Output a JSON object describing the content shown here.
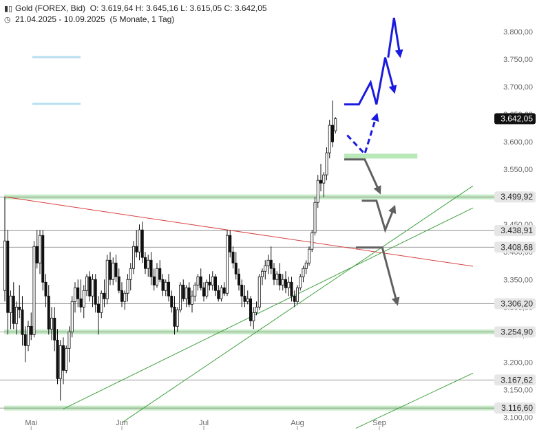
{
  "header": {
    "instrument": "Gold (FOREX, Bid)",
    "ohlc": "O: 3.619,64  H: 3.645,16  L: 3.615,05  C: 3.642,05",
    "range": "21.04.2025 - 10.09.2025",
    "period": "(5 Monate, 1 Tag)",
    "instrument_icon": "candlestick-icon",
    "range_icon": "clock-icon"
  },
  "chart_data": {
    "type": "candlestick",
    "x_labels": [
      "Mai",
      "Jun",
      "Jul",
      "Aug",
      "Sep"
    ],
    "y_ticks": [
      3100,
      3150,
      3200,
      3250,
      3300,
      3350,
      3400,
      3450,
      3500,
      3550,
      3600,
      3650,
      3700,
      3750,
      3800
    ],
    "y_tick_labels": [
      "3.100,00",
      "3.150,00",
      "3.200,00",
      "3.250,00",
      "3.300,00",
      "3.350,00",
      "3.400,00",
      "3.450,00",
      "3.500,00",
      "3.550,00",
      "3.600,00",
      "3.650,00",
      "3.700,00",
      "3.750,00",
      "3.800,00"
    ],
    "ylim": [
      3098,
      3835
    ],
    "grid": false,
    "current_price": {
      "value": 3642.05,
      "label": "3.642,05"
    },
    "levels": [
      {
        "label": "3.499,92",
        "value": 3499.92,
        "zone": true
      },
      {
        "label": "3.438,91",
        "value": 3438.91,
        "zone": false
      },
      {
        "label": "3.408,68",
        "value": 3408.68,
        "zone": false
      },
      {
        "label": "3.306,20",
        "value": 3306.2,
        "zone": false
      },
      {
        "label": "3.254,90",
        "value": 3254.9,
        "zone": true
      },
      {
        "label": "3.167,62",
        "value": 3167.62,
        "zone": false
      },
      {
        "label": "3.116,60",
        "value": 3116.6,
        "zone": true
      }
    ],
    "candles": [
      {
        "o": 3330,
        "h": 3500,
        "l": 3310,
        "c": 3420
      },
      {
        "o": 3420,
        "h": 3440,
        "l": 3250,
        "c": 3290
      },
      {
        "o": 3290,
        "h": 3330,
        "l": 3260,
        "c": 3320
      },
      {
        "o": 3320,
        "h": 3345,
        "l": 3260,
        "c": 3270
      },
      {
        "o": 3270,
        "h": 3310,
        "l": 3250,
        "c": 3300
      },
      {
        "o": 3300,
        "h": 3340,
        "l": 3280,
        "c": 3295
      },
      {
        "o": 3295,
        "h": 3320,
        "l": 3230,
        "c": 3250
      },
      {
        "o": 3250,
        "h": 3265,
        "l": 3200,
        "c": 3230
      },
      {
        "o": 3230,
        "h": 3275,
        "l": 3220,
        "c": 3265
      },
      {
        "o": 3265,
        "h": 3290,
        "l": 3240,
        "c": 3250
      },
      {
        "o": 3250,
        "h": 3420,
        "l": 3245,
        "c": 3410
      },
      {
        "o": 3410,
        "h": 3440,
        "l": 3370,
        "c": 3380
      },
      {
        "o": 3380,
        "h": 3440,
        "l": 3360,
        "c": 3430
      },
      {
        "o": 3430,
        "h": 3440,
        "l": 3330,
        "c": 3345
      },
      {
        "o": 3345,
        "h": 3360,
        "l": 3300,
        "c": 3320
      },
      {
        "o": 3320,
        "h": 3340,
        "l": 3250,
        "c": 3260
      },
      {
        "o": 3260,
        "h": 3300,
        "l": 3240,
        "c": 3280
      },
      {
        "o": 3280,
        "h": 3300,
        "l": 3220,
        "c": 3240
      },
      {
        "o": 3240,
        "h": 3260,
        "l": 3160,
        "c": 3170
      },
      {
        "o": 3170,
        "h": 3240,
        "l": 3130,
        "c": 3230
      },
      {
        "o": 3230,
        "h": 3245,
        "l": 3160,
        "c": 3185
      },
      {
        "o": 3185,
        "h": 3230,
        "l": 3180,
        "c": 3225
      },
      {
        "o": 3225,
        "h": 3265,
        "l": 3200,
        "c": 3255
      },
      {
        "o": 3255,
        "h": 3320,
        "l": 3245,
        "c": 3310
      },
      {
        "o": 3310,
        "h": 3345,
        "l": 3290,
        "c": 3335
      },
      {
        "o": 3335,
        "h": 3350,
        "l": 3300,
        "c": 3315
      },
      {
        "o": 3315,
        "h": 3350,
        "l": 3290,
        "c": 3300
      },
      {
        "o": 3300,
        "h": 3340,
        "l": 3280,
        "c": 3330
      },
      {
        "o": 3330,
        "h": 3360,
        "l": 3320,
        "c": 3355
      },
      {
        "o": 3355,
        "h": 3365,
        "l": 3310,
        "c": 3320
      },
      {
        "o": 3320,
        "h": 3360,
        "l": 3300,
        "c": 3350
      },
      {
        "o": 3350,
        "h": 3360,
        "l": 3290,
        "c": 3305
      },
      {
        "o": 3305,
        "h": 3320,
        "l": 3250,
        "c": 3290
      },
      {
        "o": 3290,
        "h": 3330,
        "l": 3280,
        "c": 3325
      },
      {
        "o": 3325,
        "h": 3350,
        "l": 3300,
        "c": 3315
      },
      {
        "o": 3315,
        "h": 3395,
        "l": 3305,
        "c": 3385
      },
      {
        "o": 3385,
        "h": 3400,
        "l": 3340,
        "c": 3350
      },
      {
        "o": 3350,
        "h": 3390,
        "l": 3340,
        "c": 3380
      },
      {
        "o": 3380,
        "h": 3395,
        "l": 3345,
        "c": 3355
      },
      {
        "o": 3355,
        "h": 3370,
        "l": 3325,
        "c": 3330
      },
      {
        "o": 3330,
        "h": 3345,
        "l": 3300,
        "c": 3310
      },
      {
        "o": 3310,
        "h": 3330,
        "l": 3295,
        "c": 3325
      },
      {
        "o": 3325,
        "h": 3360,
        "l": 3310,
        "c": 3350
      },
      {
        "o": 3350,
        "h": 3380,
        "l": 3330,
        "c": 3370
      },
      {
        "o": 3370,
        "h": 3420,
        "l": 3360,
        "c": 3410
      },
      {
        "o": 3410,
        "h": 3440,
        "l": 3390,
        "c": 3400
      },
      {
        "o": 3400,
        "h": 3450,
        "l": 3385,
        "c": 3440
      },
      {
        "o": 3440,
        "h": 3455,
        "l": 3380,
        "c": 3390
      },
      {
        "o": 3390,
        "h": 3400,
        "l": 3360,
        "c": 3370
      },
      {
        "o": 3370,
        "h": 3395,
        "l": 3355,
        "c": 3385
      },
      {
        "o": 3385,
        "h": 3400,
        "l": 3340,
        "c": 3355
      },
      {
        "o": 3355,
        "h": 3370,
        "l": 3330,
        "c": 3340
      },
      {
        "o": 3340,
        "h": 3380,
        "l": 3335,
        "c": 3370
      },
      {
        "o": 3370,
        "h": 3385,
        "l": 3345,
        "c": 3350
      },
      {
        "o": 3350,
        "h": 3360,
        "l": 3320,
        "c": 3330
      },
      {
        "o": 3330,
        "h": 3350,
        "l": 3320,
        "c": 3345
      },
      {
        "o": 3345,
        "h": 3360,
        "l": 3310,
        "c": 3320
      },
      {
        "o": 3320,
        "h": 3330,
        "l": 3290,
        "c": 3300
      },
      {
        "o": 3300,
        "h": 3320,
        "l": 3250,
        "c": 3265
      },
      {
        "o": 3265,
        "h": 3300,
        "l": 3255,
        "c": 3295
      },
      {
        "o": 3295,
        "h": 3345,
        "l": 3290,
        "c": 3340
      },
      {
        "o": 3340,
        "h": 3350,
        "l": 3310,
        "c": 3315
      },
      {
        "o": 3315,
        "h": 3340,
        "l": 3300,
        "c": 3335
      },
      {
        "o": 3335,
        "h": 3345,
        "l": 3300,
        "c": 3305
      },
      {
        "o": 3305,
        "h": 3330,
        "l": 3290,
        "c": 3320
      },
      {
        "o": 3320,
        "h": 3345,
        "l": 3310,
        "c": 3340
      },
      {
        "o": 3340,
        "h": 3360,
        "l": 3330,
        "c": 3355
      },
      {
        "o": 3355,
        "h": 3370,
        "l": 3330,
        "c": 3335
      },
      {
        "o": 3335,
        "h": 3345,
        "l": 3310,
        "c": 3320
      },
      {
        "o": 3320,
        "h": 3350,
        "l": 3315,
        "c": 3345
      },
      {
        "o": 3345,
        "h": 3360,
        "l": 3330,
        "c": 3340
      },
      {
        "o": 3340,
        "h": 3365,
        "l": 3330,
        "c": 3355
      },
      {
        "o": 3355,
        "h": 3360,
        "l": 3320,
        "c": 3330
      },
      {
        "o": 3330,
        "h": 3340,
        "l": 3310,
        "c": 3315
      },
      {
        "o": 3315,
        "h": 3340,
        "l": 3310,
        "c": 3335
      },
      {
        "o": 3335,
        "h": 3345,
        "l": 3320,
        "c": 3325
      },
      {
        "o": 3325,
        "h": 3440,
        "l": 3320,
        "c": 3430
      },
      {
        "o": 3430,
        "h": 3440,
        "l": 3390,
        "c": 3400
      },
      {
        "o": 3400,
        "h": 3410,
        "l": 3370,
        "c": 3380
      },
      {
        "o": 3380,
        "h": 3400,
        "l": 3350,
        "c": 3360
      },
      {
        "o": 3360,
        "h": 3370,
        "l": 3330,
        "c": 3340
      },
      {
        "o": 3340,
        "h": 3350,
        "l": 3300,
        "c": 3320
      },
      {
        "o": 3320,
        "h": 3340,
        "l": 3300,
        "c": 3310
      },
      {
        "o": 3310,
        "h": 3330,
        "l": 3305,
        "c": 3315
      },
      {
        "o": 3315,
        "h": 3320,
        "l": 3265,
        "c": 3275
      },
      {
        "o": 3275,
        "h": 3300,
        "l": 3260,
        "c": 3290
      },
      {
        "o": 3290,
        "h": 3310,
        "l": 3285,
        "c": 3300
      },
      {
        "o": 3300,
        "h": 3360,
        "l": 3295,
        "c": 3355
      },
      {
        "o": 3355,
        "h": 3370,
        "l": 3340,
        "c": 3365
      },
      {
        "o": 3365,
        "h": 3385,
        "l": 3350,
        "c": 3375
      },
      {
        "o": 3375,
        "h": 3395,
        "l": 3360,
        "c": 3385
      },
      {
        "o": 3385,
        "h": 3410,
        "l": 3360,
        "c": 3370
      },
      {
        "o": 3370,
        "h": 3380,
        "l": 3340,
        "c": 3350
      },
      {
        "o": 3350,
        "h": 3365,
        "l": 3340,
        "c": 3360
      },
      {
        "o": 3360,
        "h": 3380,
        "l": 3330,
        "c": 3340
      },
      {
        "o": 3340,
        "h": 3360,
        "l": 3330,
        "c": 3350
      },
      {
        "o": 3350,
        "h": 3365,
        "l": 3325,
        "c": 3335
      },
      {
        "o": 3335,
        "h": 3355,
        "l": 3320,
        "c": 3345
      },
      {
        "o": 3345,
        "h": 3355,
        "l": 3310,
        "c": 3320
      },
      {
        "o": 3320,
        "h": 3330,
        "l": 3300,
        "c": 3310
      },
      {
        "o": 3310,
        "h": 3340,
        "l": 3305,
        "c": 3335
      },
      {
        "o": 3335,
        "h": 3360,
        "l": 3330,
        "c": 3355
      },
      {
        "o": 3355,
        "h": 3375,
        "l": 3345,
        "c": 3370
      },
      {
        "o": 3370,
        "h": 3385,
        "l": 3360,
        "c": 3380
      },
      {
        "o": 3380,
        "h": 3410,
        "l": 3375,
        "c": 3405
      },
      {
        "o": 3405,
        "h": 3440,
        "l": 3400,
        "c": 3435
      },
      {
        "o": 3435,
        "h": 3500,
        "l": 3430,
        "c": 3490
      },
      {
        "o": 3490,
        "h": 3540,
        "l": 3480,
        "c": 3530
      },
      {
        "o": 3530,
        "h": 3560,
        "l": 3510,
        "c": 3525
      },
      {
        "o": 3525,
        "h": 3545,
        "l": 3500,
        "c": 3540
      },
      {
        "o": 3540,
        "h": 3590,
        "l": 3530,
        "c": 3580
      },
      {
        "o": 3580,
        "h": 3640,
        "l": 3570,
        "c": 3630
      },
      {
        "o": 3630,
        "h": 3675,
        "l": 3590,
        "c": 3600
      },
      {
        "o": 3620,
        "h": 3645,
        "l": 3615,
        "c": 3642
      }
    ],
    "trend_lines": [
      {
        "color": "#d84040",
        "from": {
          "i": 0,
          "v": 3500
        },
        "to": {
          "i": 160,
          "v": 3374
        }
      },
      {
        "color": "#40a040",
        "from": {
          "i": 20,
          "v": 3115
        },
        "to": {
          "i": 160,
          "v": 3480
        }
      },
      {
        "color": "#40a040",
        "from": {
          "i": 40,
          "v": 3090
        },
        "to": {
          "i": 160,
          "v": 3520
        }
      },
      {
        "color": "#40a040",
        "from": {
          "i": 120,
          "v": 3080
        },
        "to": {
          "i": 160,
          "v": 3180
        }
      }
    ],
    "scenarios": [
      {
        "color": "#1a1ae0",
        "dashed": false,
        "points": [
          [
            116,
            3668
          ],
          [
            121,
            3668
          ],
          [
            125,
            3708
          ],
          [
            127,
            3668
          ],
          [
            130,
            3753
          ],
          [
            133,
            3693
          ]
        ]
      },
      {
        "color": "#1a1ae0",
        "dashed": false,
        "points": [
          [
            131,
            3753
          ],
          [
            133,
            3825
          ],
          [
            135,
            3758
          ]
        ]
      },
      {
        "color": "#1a1ae0",
        "dashed": true,
        "points": [
          [
            117,
            3612
          ],
          [
            123,
            3578
          ],
          [
            127,
            3647
          ]
        ]
      },
      {
        "color": "#606060",
        "dashed": false,
        "points": [
          [
            116,
            3568
          ],
          [
            123,
            3568
          ],
          [
            128,
            3510
          ]
        ]
      },
      {
        "color": "#606060",
        "dashed": false,
        "points": [
          [
            122,
            3493
          ],
          [
            127,
            3493
          ],
          [
            130,
            3440
          ],
          [
            133,
            3480
          ]
        ]
      },
      {
        "color": "#606060",
        "dashed": false,
        "points": [
          [
            120,
            3408
          ],
          [
            129,
            3408
          ],
          [
            134,
            3308
          ]
        ]
      }
    ],
    "support_zones": [
      {
        "from": 116,
        "to": 141,
        "value": 3574
      }
    ],
    "legend_swatches": [
      {
        "color": "#b9dff0"
      },
      {
        "color": "#b9dff0"
      }
    ]
  }
}
